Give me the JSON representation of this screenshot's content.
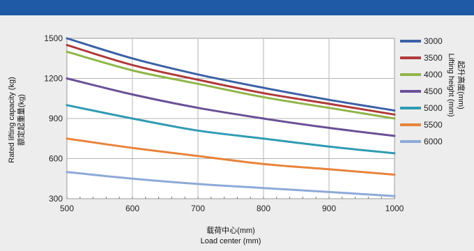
{
  "chart_data": {
    "type": "line",
    "xlabel_cn": "载荷中心(mm)",
    "xlabel_en": "Load center (mm)",
    "ylabel_cn": "额定起重量(kg)",
    "ylabel_en": "Rated lifting capacity (kg)",
    "legend_title_cn": "起升高度(mm)",
    "legend_title_en": "Lifting height (mm)",
    "xlim": [
      500,
      1000
    ],
    "ylim": [
      300,
      1500
    ],
    "x_ticks": [
      500,
      600,
      700,
      800,
      900,
      1000
    ],
    "y_ticks": [
      300,
      600,
      900,
      1200,
      1500
    ],
    "x_tick_labels": [
      "500",
      "600",
      "700",
      "800",
      "900",
      "1000"
    ],
    "y_tick_labels": [
      "300",
      "600",
      "900",
      "1200",
      "1500"
    ],
    "grid": true,
    "legend_position": "right",
    "x": [
      500,
      600,
      700,
      800,
      900,
      1000
    ],
    "series": [
      {
        "name": "3000",
        "color": "#3c61a6",
        "values": [
          1500,
          1350,
          1230,
          1130,
          1040,
          960
        ]
      },
      {
        "name": "3500",
        "color": "#b0393a",
        "values": [
          1450,
          1300,
          1190,
          1090,
          1010,
          930
        ]
      },
      {
        "name": "4000",
        "color": "#8fb54a",
        "values": [
          1400,
          1260,
          1160,
          1060,
          980,
          900
        ]
      },
      {
        "name": "4500",
        "color": "#6a4f96",
        "values": [
          1200,
          1080,
          980,
          900,
          830,
          770
        ]
      },
      {
        "name": "5000",
        "color": "#2f9bb2",
        "values": [
          1000,
          900,
          810,
          750,
          690,
          640
        ]
      },
      {
        "name": "5500",
        "color": "#e8833a",
        "values": [
          750,
          680,
          620,
          560,
          520,
          480
        ]
      },
      {
        "name": "6000",
        "color": "#8ea9d8",
        "values": [
          500,
          450,
          410,
          380,
          350,
          320
        ]
      }
    ]
  }
}
